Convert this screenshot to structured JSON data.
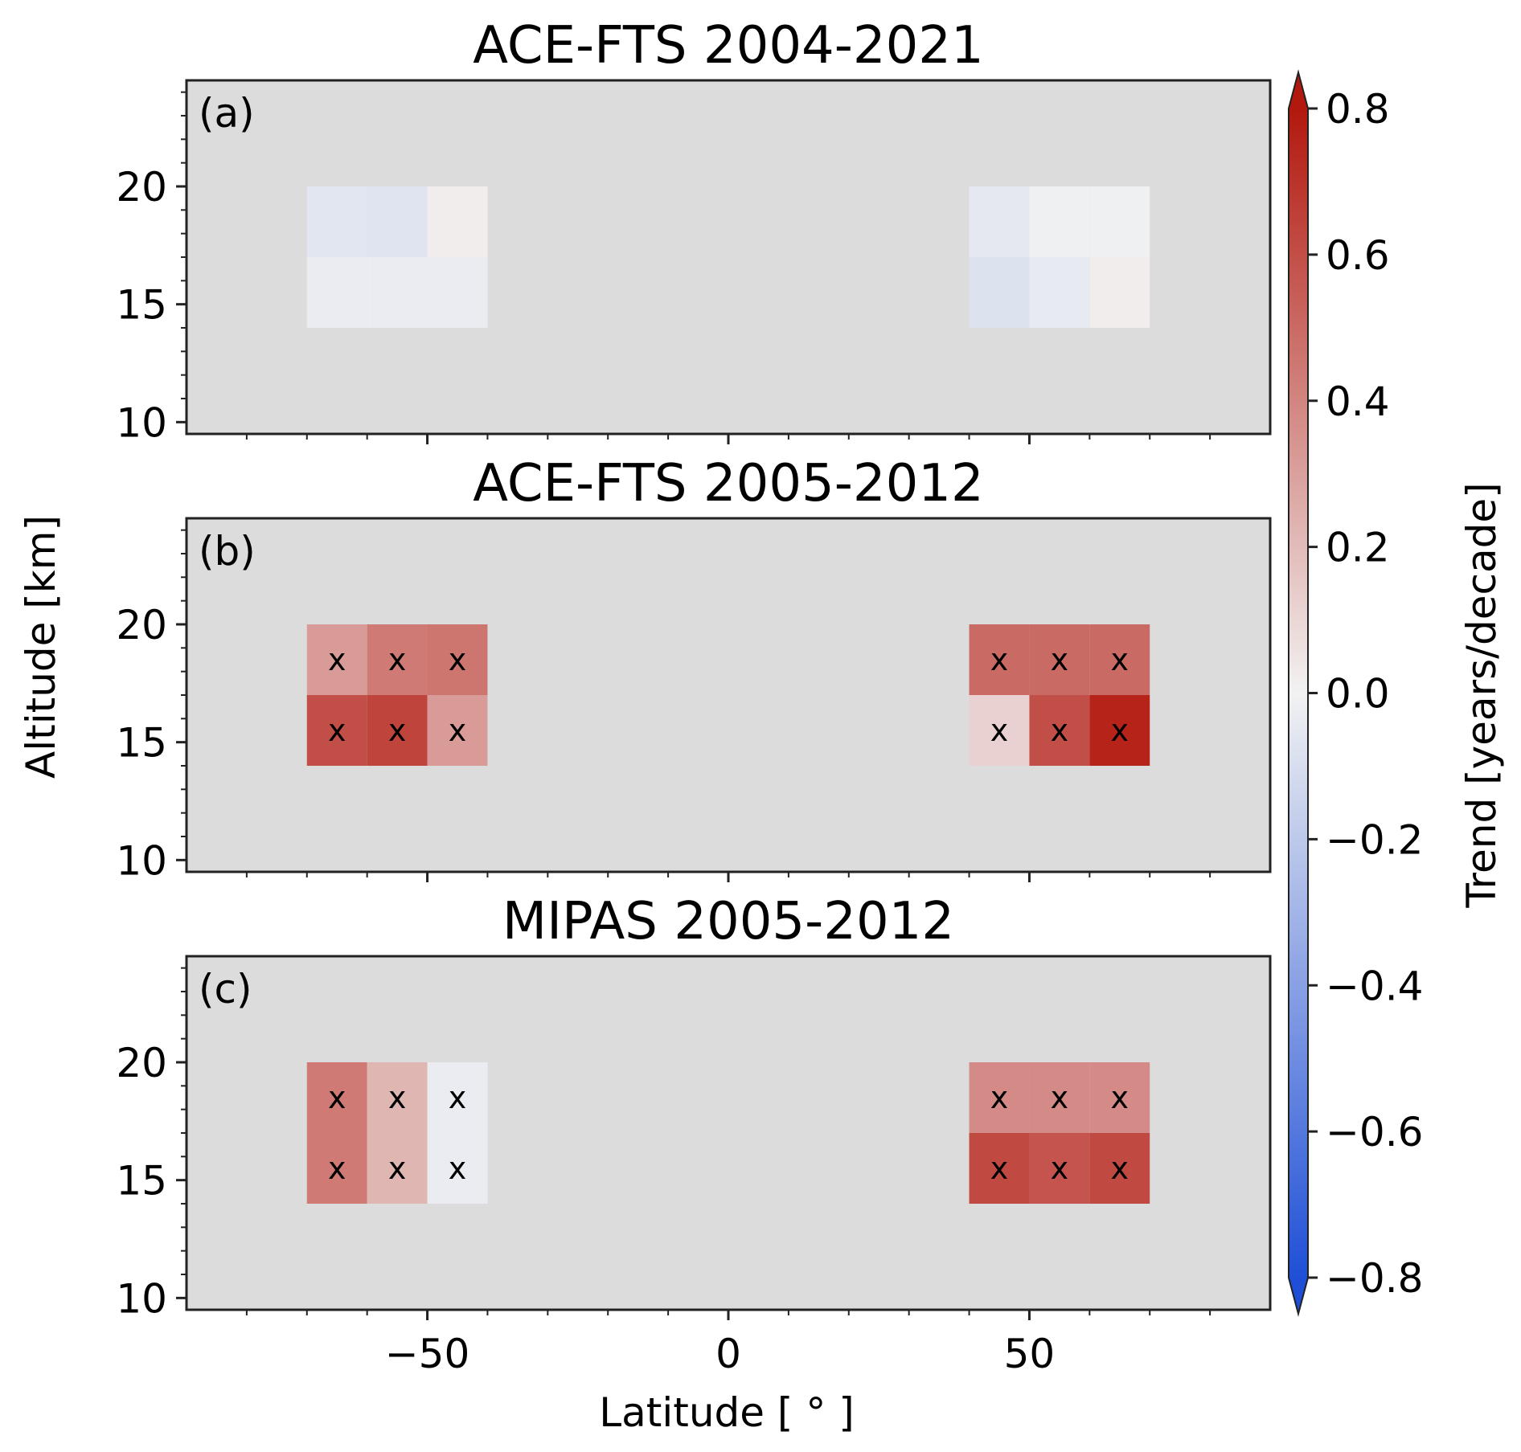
{
  "figure": {
    "shared_xlabel": "Latitude [$^\\circ$]",
    "shared_ylabel": "Altitude [km]",
    "colorbar": {
      "label": "Trend [years/decade]",
      "min": -0.8,
      "max": 0.8,
      "extend": "both",
      "ticks": [
        -0.8,
        -0.6,
        -0.4,
        -0.2,
        0.0,
        0.2,
        0.4,
        0.6,
        0.8
      ],
      "tick_labels": [
        "−0.8",
        "−0.6",
        "−0.4",
        "−0.2",
        "0.0",
        "0.2",
        "0.4",
        "0.6",
        "0.8"
      ],
      "colormap": "coolwarm-like",
      "color_stops": [
        "#1f4fd6",
        "#f2f2f2",
        "#b2180e"
      ]
    },
    "background_color": "#dcdcdc"
  },
  "chart_data": [
    {
      "type": "heatmap",
      "panel_label": "(a)",
      "title": "ACE-FTS 2004-2021",
      "xlabel": "",
      "ylabel": "",
      "xlim": [
        -90,
        90
      ],
      "ylim": [
        9.5,
        24.5
      ],
      "x_tick_values": [
        -50,
        0,
        50
      ],
      "x_tick_labels": [
        "",
        "",
        ""
      ],
      "y_tick_values": [
        10,
        15,
        20
      ],
      "y_tick_labels": [
        "10",
        "15",
        "20"
      ],
      "cells": [
        {
          "lat": [
            -70,
            -60
          ],
          "alt": [
            17,
            20
          ],
          "value": -0.06,
          "significant": false
        },
        {
          "lat": [
            -60,
            -50
          ],
          "alt": [
            17,
            20
          ],
          "value": -0.07,
          "significant": false
        },
        {
          "lat": [
            -50,
            -40
          ],
          "alt": [
            17,
            20
          ],
          "value": 0.02,
          "significant": false
        },
        {
          "lat": [
            -70,
            -60
          ],
          "alt": [
            14,
            17
          ],
          "value": -0.03,
          "significant": false
        },
        {
          "lat": [
            -60,
            -50
          ],
          "alt": [
            14,
            17
          ],
          "value": -0.03,
          "significant": false
        },
        {
          "lat": [
            -50,
            -40
          ],
          "alt": [
            14,
            17
          ],
          "value": -0.03,
          "significant": false
        },
        {
          "lat": [
            40,
            50
          ],
          "alt": [
            17,
            20
          ],
          "value": -0.05,
          "significant": false
        },
        {
          "lat": [
            50,
            60
          ],
          "alt": [
            17,
            20
          ],
          "value": -0.01,
          "significant": false
        },
        {
          "lat": [
            60,
            70
          ],
          "alt": [
            17,
            20
          ],
          "value": -0.01,
          "significant": false
        },
        {
          "lat": [
            40,
            50
          ],
          "alt": [
            14,
            17
          ],
          "value": -0.08,
          "significant": false
        },
        {
          "lat": [
            50,
            60
          ],
          "alt": [
            14,
            17
          ],
          "value": -0.04,
          "significant": false
        },
        {
          "lat": [
            60,
            70
          ],
          "alt": [
            14,
            17
          ],
          "value": 0.02,
          "significant": false
        }
      ]
    },
    {
      "type": "heatmap",
      "panel_label": "(b)",
      "title": "ACE-FTS 2005-2012",
      "xlabel": "",
      "ylabel": "",
      "xlim": [
        -90,
        90
      ],
      "ylim": [
        9.5,
        24.5
      ],
      "x_tick_values": [
        -50,
        0,
        50
      ],
      "x_tick_labels": [
        "",
        "",
        ""
      ],
      "y_tick_values": [
        10,
        15,
        20
      ],
      "y_tick_labels": [
        "10",
        "15",
        "20"
      ],
      "cells": [
        {
          "lat": [
            -70,
            -60
          ],
          "alt": [
            17,
            20
          ],
          "value": 0.32,
          "significant": true
        },
        {
          "lat": [
            -60,
            -50
          ],
          "alt": [
            17,
            20
          ],
          "value": 0.44,
          "significant": true
        },
        {
          "lat": [
            -50,
            -40
          ],
          "alt": [
            17,
            20
          ],
          "value": 0.46,
          "significant": true
        },
        {
          "lat": [
            -70,
            -60
          ],
          "alt": [
            14,
            17
          ],
          "value": 0.6,
          "significant": true
        },
        {
          "lat": [
            -60,
            -50
          ],
          "alt": [
            14,
            17
          ],
          "value": 0.64,
          "significant": true
        },
        {
          "lat": [
            -50,
            -40
          ],
          "alt": [
            14,
            17
          ],
          "value": 0.32,
          "significant": true
        },
        {
          "lat": [
            40,
            50
          ],
          "alt": [
            17,
            20
          ],
          "value": 0.5,
          "significant": true
        },
        {
          "lat": [
            50,
            60
          ],
          "alt": [
            17,
            20
          ],
          "value": 0.5,
          "significant": true
        },
        {
          "lat": [
            60,
            70
          ],
          "alt": [
            17,
            20
          ],
          "value": 0.5,
          "significant": true
        },
        {
          "lat": [
            40,
            50
          ],
          "alt": [
            14,
            17
          ],
          "value": 0.12,
          "significant": true
        },
        {
          "lat": [
            50,
            60
          ],
          "alt": [
            14,
            17
          ],
          "value": 0.6,
          "significant": true
        },
        {
          "lat": [
            60,
            70
          ],
          "alt": [
            14,
            17
          ],
          "value": 0.76,
          "significant": true
        }
      ]
    },
    {
      "type": "heatmap",
      "panel_label": "(c)",
      "title": "MIPAS 2005-2012",
      "xlabel": "Latitude [$^\\circ$]",
      "ylabel": "",
      "xlim": [
        -90,
        90
      ],
      "ylim": [
        9.5,
        24.5
      ],
      "x_tick_values": [
        -50,
        0,
        50
      ],
      "x_tick_labels": [
        "−50",
        "0",
        "50"
      ],
      "y_tick_values": [
        10,
        15,
        20
      ],
      "y_tick_labels": [
        "10",
        "15",
        "20"
      ],
      "cells": [
        {
          "lat": [
            -70,
            -60
          ],
          "alt": [
            17,
            20
          ],
          "value": 0.44,
          "significant": true
        },
        {
          "lat": [
            -60,
            -50
          ],
          "alt": [
            17,
            20
          ],
          "value": 0.22,
          "significant": true
        },
        {
          "lat": [
            -50,
            -40
          ],
          "alt": [
            17,
            20
          ],
          "value": -0.03,
          "significant": true
        },
        {
          "lat": [
            -70,
            -60
          ],
          "alt": [
            14,
            17
          ],
          "value": 0.44,
          "significant": true
        },
        {
          "lat": [
            -60,
            -50
          ],
          "alt": [
            14,
            17
          ],
          "value": 0.22,
          "significant": true
        },
        {
          "lat": [
            -50,
            -40
          ],
          "alt": [
            14,
            17
          ],
          "value": -0.03,
          "significant": true
        },
        {
          "lat": [
            40,
            50
          ],
          "alt": [
            17,
            20
          ],
          "value": 0.38,
          "significant": true
        },
        {
          "lat": [
            50,
            60
          ],
          "alt": [
            17,
            20
          ],
          "value": 0.38,
          "significant": true
        },
        {
          "lat": [
            60,
            70
          ],
          "alt": [
            17,
            20
          ],
          "value": 0.38,
          "significant": true
        },
        {
          "lat": [
            40,
            50
          ],
          "alt": [
            14,
            17
          ],
          "value": 0.62,
          "significant": true
        },
        {
          "lat": [
            50,
            60
          ],
          "alt": [
            14,
            17
          ],
          "value": 0.58,
          "significant": true
        },
        {
          "lat": [
            60,
            70
          ],
          "alt": [
            14,
            17
          ],
          "value": 0.62,
          "significant": true
        }
      ]
    }
  ]
}
